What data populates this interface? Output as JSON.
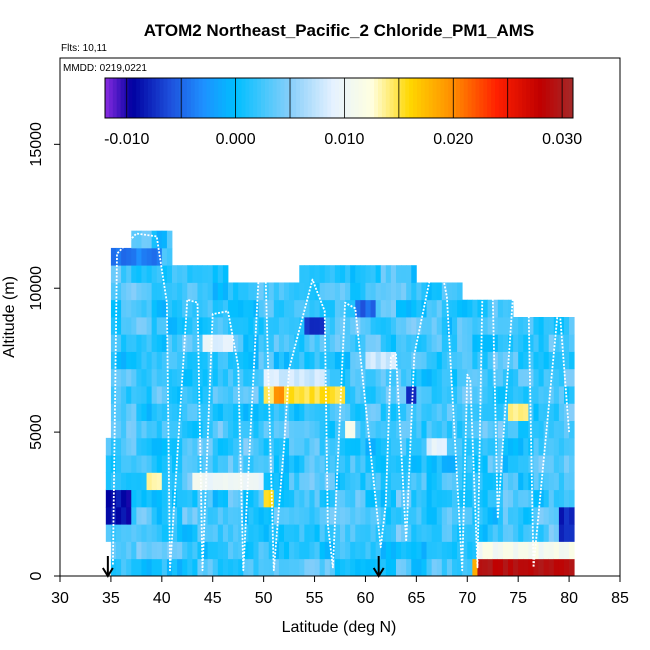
{
  "chart_data": {
    "type": "heatmap",
    "title": "ATOM2 Northeast_Pacific_2 Chloride_PM1_AMS",
    "flights_label": "Flts: 10,11",
    "dates_label": "MMDD: 0219,0221",
    "xlabel": "Latitude (deg N)",
    "ylabel": "Altitude (m)",
    "xlim": [
      30,
      85
    ],
    "ylim": [
      0,
      18000
    ],
    "x_ticks": [
      30,
      35,
      40,
      45,
      50,
      55,
      60,
      65,
      70,
      75,
      80,
      85
    ],
    "y_ticks": [
      0,
      5000,
      10000,
      15000
    ],
    "colorbar": {
      "range": [
        -0.012,
        0.031
      ],
      "tick_values": [
        -0.01,
        0.0,
        0.01,
        0.02,
        0.03
      ],
      "tick_labels": [
        "-0.010",
        "0.000",
        "0.010",
        "0.020",
        "0.030"
      ],
      "stops": [
        {
          "v": -0.012,
          "c": "#8a2be2"
        },
        {
          "v": -0.0095,
          "c": "#0000a0"
        },
        {
          "v": -0.006,
          "c": "#1e50dc"
        },
        {
          "v": -0.003,
          "c": "#1e90ff"
        },
        {
          "v": 0.0,
          "c": "#00bfff"
        },
        {
          "v": 0.005,
          "c": "#87cefa"
        },
        {
          "v": 0.009,
          "c": "#e6f2ff"
        },
        {
          "v": 0.0125,
          "c": "#ffffe0"
        },
        {
          "v": 0.016,
          "c": "#ffd700"
        },
        {
          "v": 0.02,
          "c": "#ff8c00"
        },
        {
          "v": 0.024,
          "c": "#ff2000"
        },
        {
          "v": 0.028,
          "c": "#c00000"
        },
        {
          "v": 0.031,
          "c": "#a52a2a"
        }
      ]
    },
    "lat_step": 0.5,
    "alt_step": 600,
    "background_field": {
      "lat_range": [
        34.5,
        80.5
      ],
      "alt_range": [
        0,
        12000
      ],
      "base": 0.002
    },
    "highlights": [
      {
        "lat": [
          50.0,
          58.0
        ],
        "alt": [
          6000,
          6600
        ],
        "value": 0.015
      },
      {
        "lat": [
          51.0,
          52.0
        ],
        "alt": [
          6000,
          7200
        ],
        "value": 0.02
      },
      {
        "lat": [
          74.0,
          76.0
        ],
        "alt": [
          5400,
          6000
        ],
        "value": 0.014
      },
      {
        "lat": [
          43.0,
          50.0
        ],
        "alt": [
          3000,
          3600
        ],
        "value": 0.01
      },
      {
        "lat": [
          38.5,
          40.0
        ],
        "alt": [
          3000,
          3600
        ],
        "value": 0.013
      },
      {
        "lat": [
          50.0,
          51.0
        ],
        "alt": [
          2400,
          3000
        ],
        "value": 0.015
      },
      {
        "lat": [
          58.0,
          59.0
        ],
        "alt": [
          4800,
          5400
        ],
        "value": 0.012
      },
      {
        "lat": [
          34.5,
          37.0
        ],
        "alt": [
          1800,
          3000
        ],
        "value": -0.009
      },
      {
        "lat": [
          50.0,
          56.0
        ],
        "alt": [
          6600,
          7200
        ],
        "value": 0.008
      },
      {
        "lat": [
          54.0,
          56.0
        ],
        "alt": [
          8400,
          9000
        ],
        "value": -0.007
      },
      {
        "lat": [
          59.0,
          61.0
        ],
        "alt": [
          9000,
          9600
        ],
        "value": -0.005
      },
      {
        "lat": [
          35.0,
          40.0
        ],
        "alt": [
          10800,
          11400
        ],
        "value": -0.004
      },
      {
        "lat": [
          64.0,
          65.0
        ],
        "alt": [
          6000,
          6600
        ],
        "value": -0.008
      },
      {
        "lat": [
          71.0,
          80.5
        ],
        "alt": [
          0,
          600
        ],
        "value": 0.029
      },
      {
        "lat": [
          70.5,
          71.0
        ],
        "alt": [
          0,
          600
        ],
        "value": 0.018
      },
      {
        "lat": [
          71.0,
          80.5
        ],
        "alt": [
          600,
          1200
        ],
        "value": 0.011
      },
      {
        "lat": [
          79.0,
          80.5
        ],
        "alt": [
          1200,
          2400
        ],
        "value": -0.008
      },
      {
        "lat": [
          44.0,
          47.0
        ],
        "alt": [
          7800,
          8400
        ],
        "value": 0.009
      },
      {
        "lat": [
          66.0,
          68.0
        ],
        "alt": [
          4200,
          4800
        ],
        "value": 0.009
      },
      {
        "lat": [
          60.0,
          63.0
        ],
        "alt": [
          7200,
          7800
        ],
        "value": 0.008
      }
    ],
    "flight_track": {
      "lat": [
        35.2,
        35.6,
        37.5,
        39.5,
        40.5,
        40.8,
        42.5,
        43.5,
        44.0,
        45.0,
        46.5,
        47.5,
        48.0,
        49.5,
        50.2,
        51.0,
        52.0,
        52.5,
        54.8,
        56.0,
        56.3,
        56.8,
        58.0,
        59.0,
        61.5,
        62.0,
        62.5,
        63.0,
        64.0,
        64.3,
        64.8,
        66.5,
        67.5,
        68.0,
        69.5,
        70.0,
        70.3,
        71.0,
        71.5,
        72.5,
        73.0,
        74.5,
        76.0,
        76.5,
        79.0,
        80.0
      ],
      "alt": [
        400,
        11200,
        11900,
        11800,
        9500,
        200,
        9600,
        9500,
        200,
        9100,
        9200,
        7300,
        200,
        10300,
        10300,
        200,
        4500,
        7200,
        10300,
        9200,
        1800,
        300,
        9500,
        9300,
        1000,
        2500,
        7600,
        7700,
        1200,
        3600,
        7700,
        10600,
        10600,
        9700,
        200,
        7000,
        6800,
        300,
        10000,
        9800,
        2000,
        9800,
        9700,
        300,
        9600,
        5000
      ]
    },
    "arrows_lat": [
      34.7,
      61.3
    ]
  }
}
